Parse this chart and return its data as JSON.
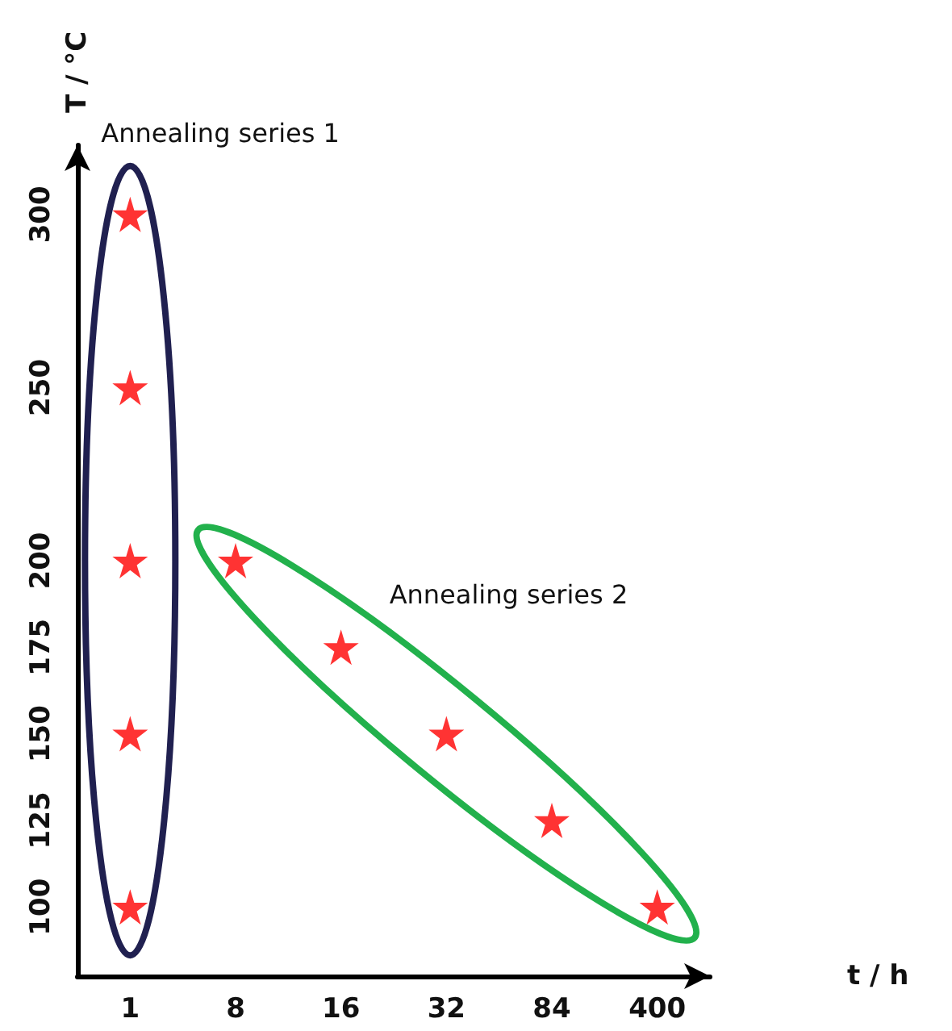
{
  "chart_data": {
    "type": "scatter",
    "xlabel": "t / h",
    "ylabel": "T / °C",
    "categories": [
      "1",
      "8",
      "16",
      "32",
      "84",
      "400"
    ],
    "series": [
      {
        "name": "Annealing series 1",
        "color": "#ff0000",
        "x": [
          "1",
          "1",
          "1",
          "1",
          "1"
        ],
        "values": [
          300,
          250,
          200,
          150,
          100
        ]
      },
      {
        "name": "Annealing series 2",
        "color": "#ff0000",
        "x": [
          "8",
          "16",
          "32",
          "84",
          "400"
        ],
        "values": [
          200,
          175,
          150,
          125,
          100
        ]
      }
    ],
    "ylim": [
      80,
      320
    ],
    "yticks": [
      100,
      125,
      150,
      175,
      200,
      250,
      300
    ],
    "grid": false,
    "legend": false,
    "marker": "star"
  }
}
